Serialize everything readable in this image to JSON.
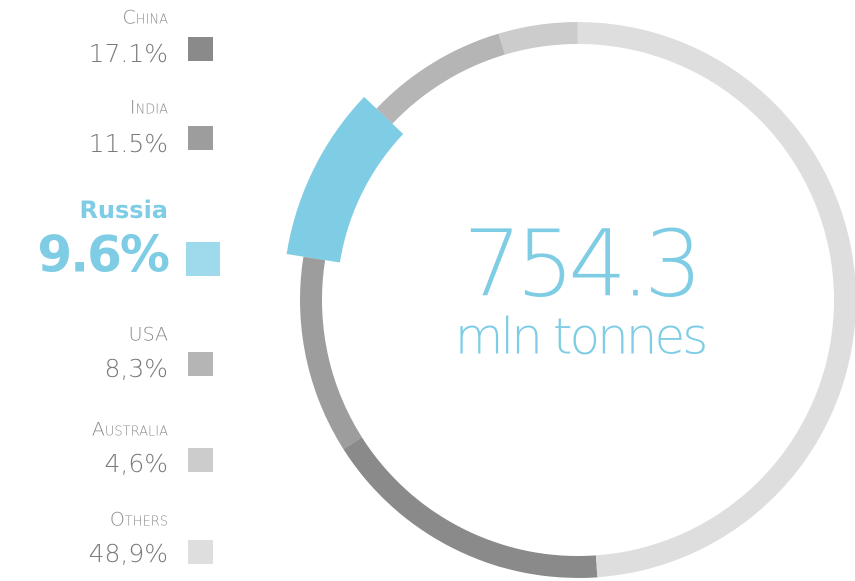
{
  "chart_data": {
    "type": "pie",
    "donut": true,
    "categories": [
      "China",
      "India",
      "Russia",
      "USA",
      "Australia",
      "Others"
    ],
    "values": [
      17.1,
      11.5,
      9.6,
      8.3,
      4.6,
      48.9
    ],
    "value_labels": [
      "17.1%",
      "11.5%",
      "9.6%",
      "8,3%",
      "4,6%",
      "48,9%"
    ],
    "colors": [
      "#8a8a8a",
      "#9d9d9d",
      "#7fcde5",
      "#b5b5b5",
      "#cccccc",
      "#dedede"
    ],
    "highlight": "Russia",
    "center_value": 754.3,
    "center_label": "mln tonnes"
  }
}
